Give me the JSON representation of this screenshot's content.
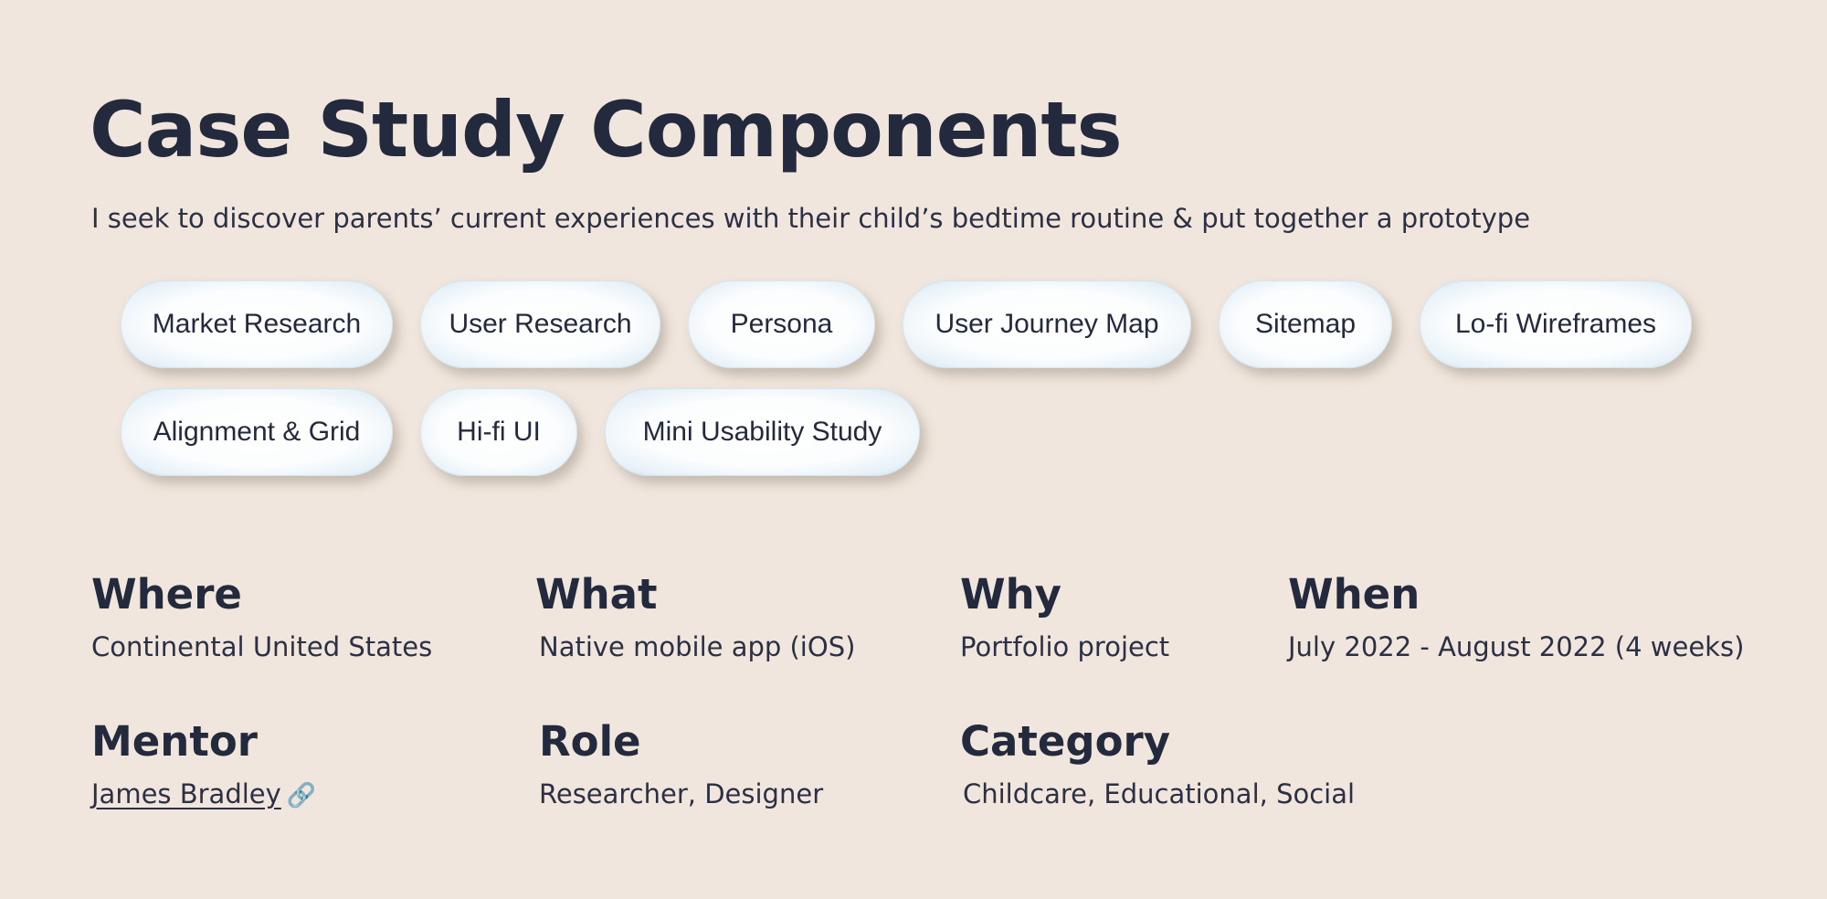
{
  "header": {
    "title": "Case Study Components",
    "subtitle": "I seek to discover parents’ current experiences with their child’s bedtime routine & put together a prototype"
  },
  "tags": {
    "row1": [
      {
        "label": "Market Research"
      },
      {
        "label": "User Research"
      },
      {
        "label": "Persona"
      },
      {
        "label": "User Journey Map"
      },
      {
        "label": "Sitemap"
      },
      {
        "label": "Lo-fi Wireframes"
      }
    ],
    "row2": [
      {
        "label": "Alignment & Grid"
      },
      {
        "label": "Hi-fi UI"
      },
      {
        "label": "Mini Usability Study"
      }
    ]
  },
  "details": {
    "where": {
      "label": "Where",
      "value": "Continental United States"
    },
    "what": {
      "label": "What",
      "value": "Native mobile app (iOS)"
    },
    "why": {
      "label": "Why",
      "value": "Portfolio project"
    },
    "when": {
      "label": "When",
      "value": "July 2022 - August 2022 (4 weeks)"
    },
    "mentor": {
      "label": "Mentor",
      "value": "James Bradley",
      "icon": "link-icon"
    },
    "role": {
      "label": "Role",
      "value": "Researcher, Designer"
    },
    "category": {
      "label": "Category",
      "value": "Childcare, Educational, Social"
    }
  },
  "colors": {
    "background": "#f0e6dd",
    "text": "#242a3d",
    "tag_fill": "#fbfdfe",
    "tag_edge": "#cfe2ee"
  }
}
